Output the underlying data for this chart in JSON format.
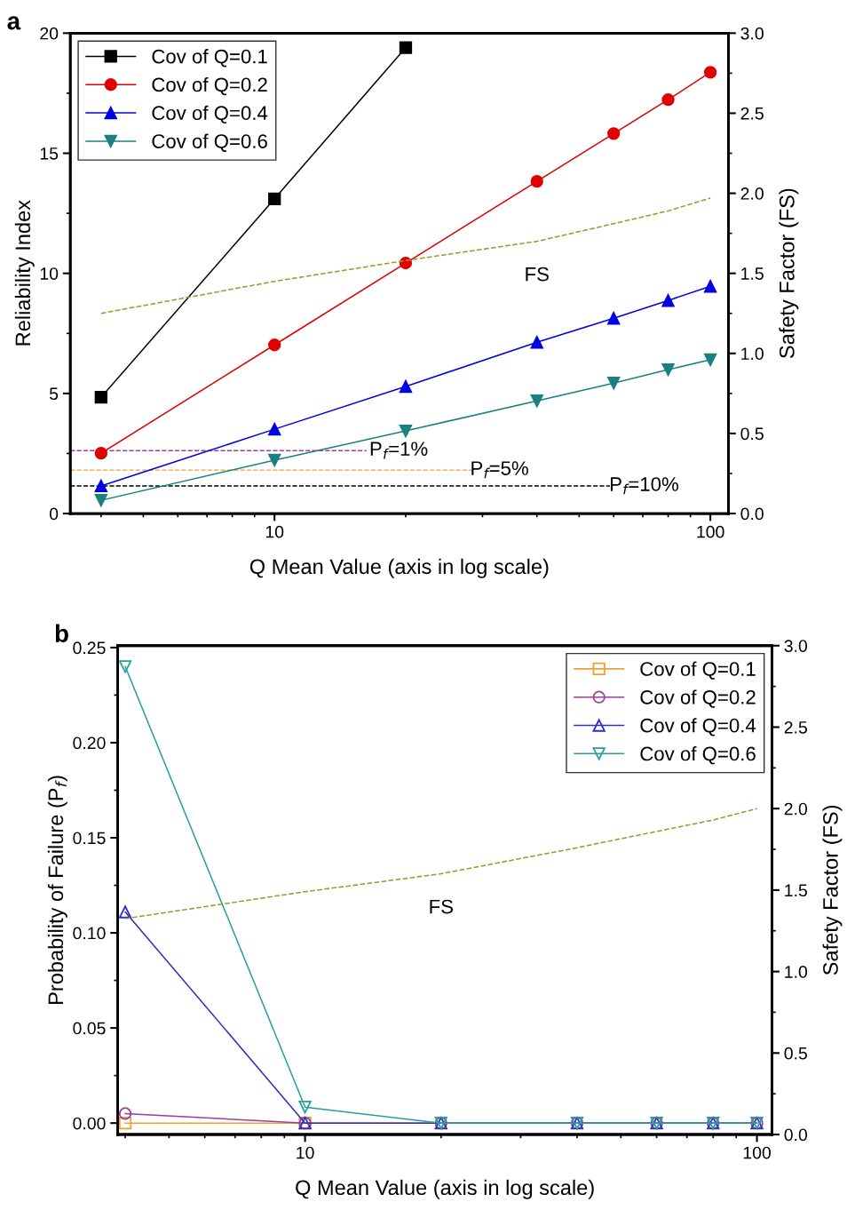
{
  "chart_data": [
    {
      "type": "line",
      "title": "a",
      "xlabel": "Q Mean Value (axis in log scale)",
      "ylabel": "Reliability Index",
      "y2label": "Safety Factor (FS)",
      "log": "x",
      "x": [
        4,
        10,
        20,
        40,
        60,
        80,
        100
      ],
      "xlim": [
        3.4,
        110
      ],
      "xticks": [
        10,
        100
      ],
      "ylim": [
        0,
        20
      ],
      "yticks": [
        0,
        5,
        10,
        15,
        20
      ],
      "y2lim": [
        0,
        3
      ],
      "y2ticks": [
        {
          "value": 0,
          "label": "0.0"
        },
        {
          "value": 0.5,
          "label": "0.5"
        },
        {
          "value": 1,
          "label": "1.0"
        },
        {
          "value": 1.5,
          "label": "1.5"
        },
        {
          "value": 2,
          "label": "2.0"
        },
        {
          "value": 2.5,
          "label": "2.5"
        },
        {
          "value": 3,
          "label": "3.0"
        }
      ],
      "legend": "top left",
      "grid": false,
      "series": [
        {
          "name": "Cov of Q=0.1",
          "color": "#000000",
          "marker": "square",
          "values": [
            4.84,
            13.1,
            19.4,
            null,
            null,
            null,
            null
          ]
        },
        {
          "name": "Cov of Q=0.2",
          "color": "#e00000",
          "marker": "circle",
          "values": [
            2.51,
            7.02,
            10.43,
            13.83,
            15.82,
            17.23,
            18.37
          ]
        },
        {
          "name": "Cov of Q=0.4",
          "color": "#0000e0",
          "marker": "triangle",
          "values": [
            1.15,
            3.51,
            5.29,
            7.13,
            8.13,
            8.87,
            9.46
          ]
        },
        {
          "name": "Cov of Q=0.6",
          "color": "#1a8080",
          "marker": "triangle_down",
          "values": [
            0.55,
            2.22,
            3.44,
            4.69,
            5.43,
            5.99,
            6.4
          ]
        },
        {
          "name": "FS",
          "color": "#9a9a30",
          "axis": "y2",
          "line_style": "dashed",
          "marker": "none",
          "values": [
            1.25,
            1.45,
            1.58,
            1.7,
            1.81,
            1.89,
            1.97
          ]
        }
      ],
      "ref_lines": [
        {
          "axis": "y",
          "value": 2.62,
          "color": "#9b3f9b",
          "line_style": "dashed"
        },
        {
          "axis": "y",
          "value": 1.81,
          "color": "#f0a030",
          "line_style": "dashed"
        },
        {
          "axis": "y",
          "value": 1.15,
          "color": "#000000",
          "line_style": "dashed"
        }
      ],
      "annotations": [
        {
          "text": "P$_{f}$=1%",
          "x": 16.5,
          "y": 2.62
        },
        {
          "text": "P$_{f}$=5%",
          "x": 28.1,
          "y": 1.81
        },
        {
          "text": "P$_{f}$=10%",
          "x": 58.6,
          "y": 1.15
        }
      ]
    },
    {
      "type": "line",
      "title": "b",
      "xlabel": "Q Mean Value (axis in log scale)",
      "ylabel": "Probability of Failure (P$_{f}$)",
      "y2label": "Safety Factor (FS)",
      "log": "x",
      "x": [
        4,
        10,
        20,
        40,
        60,
        80,
        100
      ],
      "xlim": [
        3.85,
        108
      ],
      "xticks": [
        10,
        100
      ],
      "ylim": [
        -0.006,
        0.251
      ],
      "yticks": [
        {
          "value": 0,
          "label": "0.00"
        },
        {
          "value": 0.05,
          "label": "0.05"
        },
        {
          "value": 0.1,
          "label": "0.10"
        },
        {
          "value": 0.15,
          "label": "0.15"
        },
        {
          "value": 0.2,
          "label": "0.20"
        },
        {
          "value": 0.25,
          "label": "0.25"
        }
      ],
      "y2lim": [
        0,
        3
      ],
      "y2ticks": [
        {
          "value": 0,
          "label": "0.0"
        },
        {
          "value": 0.5,
          "label": "0.5"
        },
        {
          "value": 1,
          "label": "1.0"
        },
        {
          "value": 1.5,
          "label": "1.5"
        },
        {
          "value": 2,
          "label": "2.0"
        },
        {
          "value": 2.5,
          "label": "2.5"
        },
        {
          "value": 3,
          "label": "3.0"
        }
      ],
      "legend": "top right",
      "grid": false,
      "series": [
        {
          "name": "Cov of Q=0.1",
          "color": "#f0a030",
          "marker": "square",
          "values": [
            0,
            0,
            null,
            null,
            null,
            null,
            null
          ]
        },
        {
          "name": "Cov of Q=0.2",
          "color": "#9b3f9b",
          "marker": "circle",
          "values": [
            0.005,
            0,
            0,
            0,
            0,
            0,
            0
          ]
        },
        {
          "name": "Cov of Q=0.4",
          "color": "#3030c0",
          "marker": "triangle",
          "values": [
            0.111,
            0,
            0,
            0,
            0,
            0,
            0
          ]
        },
        {
          "name": "Cov of Q=0.6",
          "color": "#2a9d9d",
          "marker": "triangle_down",
          "values": [
            0.24,
            0.0084,
            0,
            0,
            0,
            0,
            0
          ]
        },
        {
          "name": "FS",
          "color": "#9a9a30",
          "axis": "y2",
          "line_style": "dashed",
          "marker": "none",
          "values": [
            1.325,
            1.49,
            1.6,
            1.76,
            1.86,
            1.93,
            2.0
          ]
        }
      ]
    }
  ]
}
